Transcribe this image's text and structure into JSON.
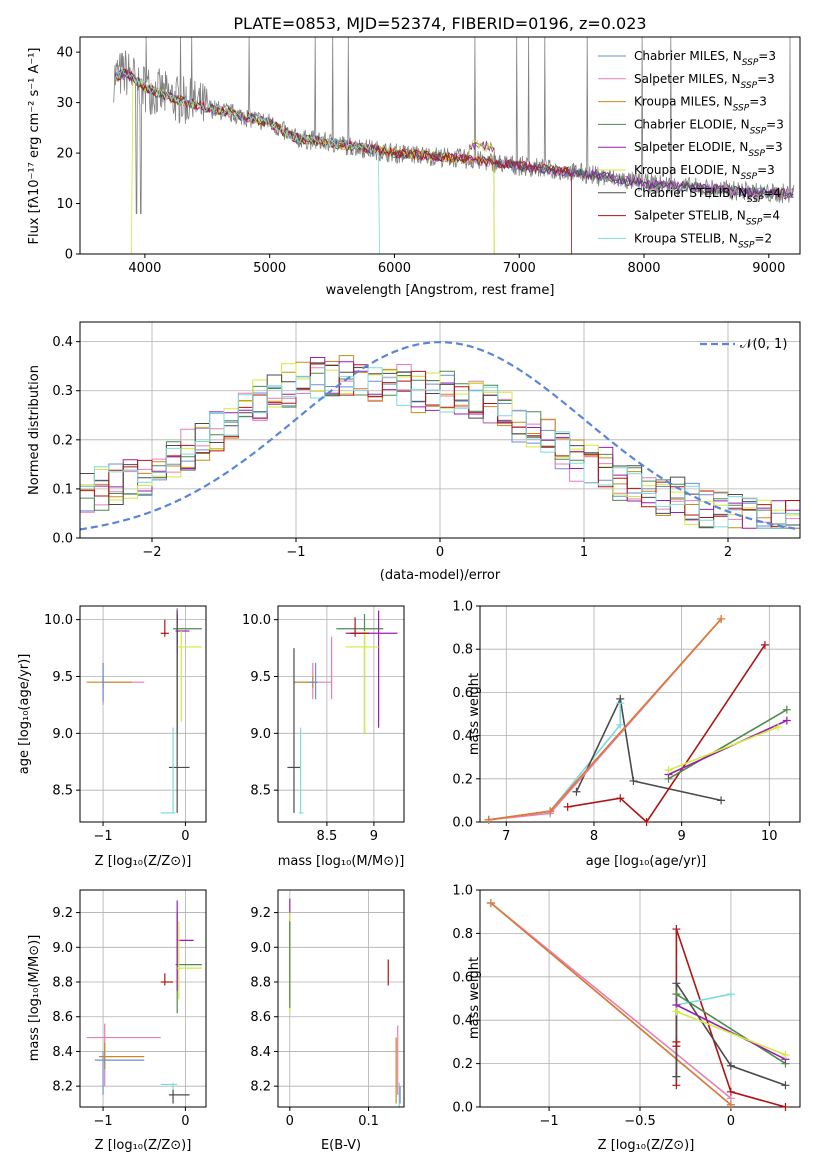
{
  "colors": {
    "Chabrier MILES": "#6a8fd6",
    "Salpeter MILES": "#e67fb5",
    "Kroupa MILES": "#c98a1e",
    "Chabrier ELODIE": "#4f8a4f",
    "Salpeter ELODIE": "#9a1fb0",
    "Kroupa ELODIE": "#d4ea3c",
    "Chabrier STELIB": "#4b4b4b",
    "Salpeter STELIB": "#b01515",
    "Kroupa STELIB": "#7fdadb",
    "data": "#808080",
    "normal": "#5b86d8",
    "orange": "#e07a2e"
  },
  "chart_data": [
    {
      "id": "spectrum",
      "type": "line",
      "title": "PLATE=0853, MJD=52374, FIBERID=0196, z=0.023",
      "xlabel": "wavelength [Angstrom, rest frame]",
      "ylabel": "Flux [fλ10⁻¹⁷ erg cm⁻² s⁻¹ A⁻¹]",
      "xlim": [
        3480,
        9250
      ],
      "ylim": [
        0,
        43
      ],
      "xticks": [
        4000,
        5000,
        6000,
        7000,
        8000,
        9000
      ],
      "yticks": [
        0,
        10,
        20,
        30,
        40
      ],
      "legend": [
        "Chabrier MILES, N_SSP=3",
        "Salpeter MILES, N_SSP=3",
        "Kroupa MILES, N_SSP=3",
        "Chabrier ELODIE, N_SSP=3",
        "Salpeter ELODIE, N_SSP=3",
        "Kroupa ELODIE, N_SSP=3",
        "Chabrier STELIB, N_SSP=4",
        "Salpeter STELIB, N_SSP=4",
        "Kroupa STELIB, N_SSP=2"
      ],
      "legend_position": "top-right",
      "continuum": [
        [
          3750,
          35
        ],
        [
          3850,
          36
        ],
        [
          4000,
          33
        ],
        [
          4200,
          31
        ],
        [
          4500,
          29
        ],
        [
          5000,
          26
        ],
        [
          5200,
          23
        ],
        [
          5500,
          22
        ],
        [
          6000,
          20
        ],
        [
          6500,
          19
        ],
        [
          7000,
          17.5
        ],
        [
          7500,
          16
        ],
        [
          8000,
          14
        ],
        [
          8500,
          13
        ],
        [
          9000,
          12
        ],
        [
          9200,
          12
        ]
      ]
    },
    {
      "id": "residuals",
      "type": "step",
      "xlabel": "(data-model)/error",
      "ylabel": "Normed distribution",
      "xlim": [
        -2.5,
        2.5
      ],
      "ylim": [
        0,
        0.44
      ],
      "xticks": [
        -2,
        -1,
        0,
        1,
        2
      ],
      "yticks": [
        0,
        0.1,
        0.2,
        0.3,
        0.4
      ],
      "legend": [
        "𝒩(0, 1)"
      ],
      "legend_position": "top-right",
      "bins": 50,
      "base_profile": [
        0.09,
        0.1,
        0.11,
        0.12,
        0.13,
        0.14,
        0.16,
        0.18,
        0.2,
        0.22,
        0.24,
        0.26,
        0.28,
        0.3,
        0.31,
        0.32,
        0.33,
        0.33,
        0.33,
        0.32,
        0.32,
        0.31,
        0.31,
        0.3,
        0.3,
        0.3,
        0.29,
        0.28,
        0.27,
        0.26,
        0.24,
        0.22,
        0.2,
        0.18,
        0.16,
        0.15,
        0.14,
        0.12,
        0.11,
        0.1,
        0.09,
        0.08,
        0.07,
        0.06,
        0.06,
        0.05,
        0.05,
        0.04,
        0.04,
        0.04
      ]
    },
    {
      "id": "age_vs_Z",
      "type": "errorbar",
      "xlabel": "Z [log₁₀(Z/Z⊙)]",
      "ylabel": "age  [log₁₀(age/yr)]",
      "xlim": [
        -1.28,
        0.25
      ],
      "ylim": [
        8.22,
        10.12
      ],
      "xticks": [
        -1,
        0
      ],
      "yticks": [
        8.5,
        9.0,
        9.5,
        10.0
      ],
      "points": [
        {
          "x": -1.0,
          "xlo": -1.0,
          "xhi": -0.5,
          "y": 9.45,
          "ylo": 9.25,
          "yhi": 9.62,
          "c": "Salpeter MILES"
        },
        {
          "x": -1.0,
          "xlo": -1.2,
          "xhi": -0.65,
          "y": 9.45,
          "ylo": 9.4,
          "yhi": 9.5,
          "c": "Kroupa MILES"
        },
        {
          "x": -1.0,
          "xlo": -1.02,
          "xhi": -0.98,
          "y": 9.45,
          "ylo": 9.28,
          "yhi": 9.62,
          "c": "Chabrier MILES"
        },
        {
          "x": -0.25,
          "xlo": -0.3,
          "xhi": -0.2,
          "y": 9.88,
          "ylo": 9.85,
          "yhi": 10.0,
          "c": "Salpeter STELIB"
        },
        {
          "x": -0.1,
          "xlo": -0.15,
          "xhi": 0.2,
          "y": 9.92,
          "ylo": 9.0,
          "yhi": 10.1,
          "c": "Chabrier ELODIE"
        },
        {
          "x": -0.1,
          "xlo": -0.12,
          "xhi": 0.05,
          "y": 9.9,
          "ylo": 9.7,
          "yhi": 10.08,
          "c": "Salpeter ELODIE"
        },
        {
          "x": -0.05,
          "xlo": -0.1,
          "xhi": 0.2,
          "y": 9.76,
          "ylo": 9.1,
          "yhi": 9.9,
          "c": "Kroupa ELODIE"
        },
        {
          "x": -0.1,
          "xlo": -0.2,
          "xhi": 0.05,
          "y": 8.7,
          "ylo": 8.3,
          "yhi": 10.05,
          "c": "Chabrier STELIB"
        },
        {
          "x": -0.15,
          "xlo": -0.3,
          "xhi": -0.12,
          "y": 8.3,
          "ylo": 8.3,
          "yhi": 9.05,
          "c": "Kroupa STELIB"
        }
      ]
    },
    {
      "id": "age_vs_mass",
      "type": "errorbar",
      "xlabel": "mass [log₁₀(M/M⊙)]",
      "ylabel": "",
      "xlim": [
        7.98,
        9.32
      ],
      "ylim": [
        8.22,
        10.12
      ],
      "xticks": [
        8.5,
        9.0
      ],
      "yticks": [
        8.5,
        9.0,
        9.5,
        10.0
      ],
      "points": [
        {
          "x": 8.35,
          "xlo": 8.15,
          "xhi": 8.55,
          "y": 9.45,
          "ylo": 9.3,
          "yhi": 9.62,
          "c": "Salpeter MILES"
        },
        {
          "x": 8.35,
          "xlo": 8.15,
          "xhi": 8.4,
          "y": 9.45,
          "ylo": 9.4,
          "yhi": 9.5,
          "c": "Kroupa MILES"
        },
        {
          "x": 8.38,
          "xlo": 8.3,
          "xhi": 8.4,
          "y": 9.45,
          "ylo": 9.3,
          "yhi": 9.62,
          "c": "Chabrier MILES"
        },
        {
          "x": 8.55,
          "xlo": 8.55,
          "xhi": 8.55,
          "y": 9.45,
          "ylo": 9.3,
          "yhi": 9.85,
          "c": "Salpeter MILES"
        },
        {
          "x": 8.9,
          "xlo": 8.6,
          "xhi": 9.1,
          "y": 9.92,
          "ylo": 9.0,
          "yhi": 10.05,
          "c": "Chabrier ELODIE"
        },
        {
          "x": 9.05,
          "xlo": 8.7,
          "xhi": 9.25,
          "y": 9.88,
          "ylo": 9.05,
          "yhi": 10.08,
          "c": "Salpeter ELODIE"
        },
        {
          "x": 8.9,
          "xlo": 8.7,
          "xhi": 9.05,
          "y": 9.76,
          "ylo": 9.0,
          "yhi": 9.9,
          "c": "Kroupa ELODIE"
        },
        {
          "x": 8.8,
          "xlo": 8.75,
          "xhi": 8.95,
          "y": 9.88,
          "ylo": 9.85,
          "yhi": 10.02,
          "c": "Salpeter STELIB"
        },
        {
          "x": 8.15,
          "xlo": 8.08,
          "xhi": 8.22,
          "y": 8.7,
          "ylo": 8.3,
          "yhi": 9.75,
          "c": "Chabrier STELIB"
        },
        {
          "x": 8.22,
          "xlo": 8.2,
          "xhi": 8.25,
          "y": 8.3,
          "ylo": 8.3,
          "yhi": 9.05,
          "c": "Kroupa STELIB"
        }
      ]
    },
    {
      "id": "weight_vs_age",
      "type": "line",
      "xlabel": "age  [log₁₀(age/yr)]",
      "ylabel": "mass weight",
      "xlim": [
        6.7,
        10.35
      ],
      "ylim": [
        0,
        1.0
      ],
      "xticks": [
        7,
        8,
        9,
        10
      ],
      "yticks": [
        0.0,
        0.2,
        0.4,
        0.6,
        0.8,
        1.0
      ],
      "series": [
        {
          "c": "Kroupa STELIB",
          "x": [
            6.8,
            7.5,
            8.3,
            8.3
          ],
          "y": [
            0.01,
            0.05,
            0.45,
            0.55
          ]
        },
        {
          "c": "Chabrier STELIB",
          "x": [
            7.8,
            8.3,
            8.45,
            9.45
          ],
          "y": [
            0.14,
            0.57,
            0.19,
            0.1
          ]
        },
        {
          "c": "Salpeter STELIB",
          "x": [
            7.7,
            8.3,
            8.6,
            9.95
          ],
          "y": [
            0.07,
            0.11,
            0.0,
            0.82
          ]
        },
        {
          "c": "Chabrier ELODIE",
          "x": [
            8.85,
            10.2
          ],
          "y": [
            0.2,
            0.52
          ]
        },
        {
          "c": "Salpeter ELODIE",
          "x": [
            8.85,
            10.2
          ],
          "y": [
            0.22,
            0.47
          ]
        },
        {
          "c": "Kroupa ELODIE",
          "x": [
            8.85,
            10.1
          ],
          "y": [
            0.24,
            0.44
          ]
        },
        {
          "c": "Chabrier MILES",
          "x": [
            6.8,
            7.5,
            9.45
          ],
          "y": [
            0.01,
            0.05,
            0.94
          ]
        },
        {
          "c": "Salpeter MILES",
          "x": [
            6.8,
            7.5,
            9.45
          ],
          "y": [
            0.01,
            0.04,
            0.94
          ]
        },
        {
          "c": "orange",
          "x": [
            6.8,
            7.5,
            9.45
          ],
          "y": [
            0.01,
            0.05,
            0.94
          ]
        }
      ]
    },
    {
      "id": "mass_vs_Z",
      "type": "errorbar",
      "xlabel": "Z [log₁₀(Z/Z⊙)]",
      "ylabel": "mass [log₁₀(M/M⊙)]",
      "xlim": [
        -1.28,
        0.25
      ],
      "ylim": [
        8.08,
        9.33
      ],
      "xticks": [
        -1,
        0
      ],
      "yticks": [
        8.2,
        8.4,
        8.6,
        8.8,
        9.0,
        9.2
      ],
      "points": [
        {
          "x": -0.98,
          "xlo": -1.2,
          "xhi": -0.3,
          "y": 8.48,
          "ylo": 8.2,
          "yhi": 8.56,
          "c": "Salpeter MILES"
        },
        {
          "x": -0.98,
          "xlo": -1.05,
          "xhi": -0.5,
          "y": 8.37,
          "ylo": 8.3,
          "yhi": 8.45,
          "c": "Kroupa MILES"
        },
        {
          "x": -1.0,
          "xlo": -1.1,
          "xhi": -0.5,
          "y": 8.35,
          "ylo": 8.15,
          "yhi": 8.4,
          "c": "Chabrier MILES"
        },
        {
          "x": -0.25,
          "xlo": -0.3,
          "xhi": -0.15,
          "y": 8.8,
          "ylo": 8.78,
          "yhi": 8.85,
          "c": "Salpeter STELIB"
        },
        {
          "x": -0.1,
          "xlo": -0.12,
          "xhi": 0.2,
          "y": 8.9,
          "ylo": 8.62,
          "yhi": 9.2,
          "c": "Chabrier ELODIE"
        },
        {
          "x": -0.1,
          "xlo": -0.1,
          "xhi": 0.1,
          "y": 9.04,
          "ylo": 8.75,
          "yhi": 9.27,
          "c": "Salpeter ELODIE"
        },
        {
          "x": -0.08,
          "xlo": -0.1,
          "xhi": 0.2,
          "y": 8.88,
          "ylo": 8.7,
          "yhi": 9.15,
          "c": "Kroupa ELODIE"
        },
        {
          "x": -0.15,
          "xlo": -0.2,
          "xhi": 0.05,
          "y": 8.15,
          "ylo": 8.1,
          "yhi": 8.18,
          "c": "Chabrier STELIB"
        },
        {
          "x": -0.15,
          "xlo": -0.3,
          "xhi": -0.1,
          "y": 8.21,
          "ylo": 8.18,
          "yhi": 8.22,
          "c": "Kroupa STELIB"
        }
      ]
    },
    {
      "id": "mass_vs_ebv",
      "type": "errorbar",
      "xlabel": "E(B-V)",
      "ylabel": "",
      "xlim": [
        -0.015,
        0.145
      ],
      "ylim": [
        8.08,
        9.33
      ],
      "xticks": [
        0.0,
        0.1
      ],
      "yticks": [
        8.2,
        8.4,
        8.6,
        8.8,
        9.0,
        9.2
      ],
      "points": [
        {
          "x": 0.0,
          "xlo": 0.0,
          "xhi": 0.0,
          "y": 9.05,
          "ylo": 8.7,
          "yhi": 9.28,
          "c": "Salpeter ELODIE"
        },
        {
          "x": 0.0,
          "xlo": 0.0,
          "xhi": 0.0,
          "y": 8.9,
          "ylo": 8.62,
          "yhi": 9.2,
          "c": "Kroupa ELODIE"
        },
        {
          "x": 0.0,
          "xlo": 0.0,
          "xhi": 0.0,
          "y": 8.88,
          "ylo": 8.65,
          "yhi": 9.15,
          "c": "Chabrier ELODIE"
        },
        {
          "x": 0.125,
          "xlo": 0.125,
          "xhi": 0.125,
          "y": 8.85,
          "ylo": 8.78,
          "yhi": 8.93,
          "c": "Salpeter STELIB"
        },
        {
          "x": 0.135,
          "xlo": 0.135,
          "xhi": 0.135,
          "y": 8.3,
          "ylo": 8.1,
          "yhi": 8.48,
          "c": "Kroupa MILES"
        },
        {
          "x": 0.137,
          "xlo": 0.137,
          "xhi": 0.137,
          "y": 8.35,
          "ylo": 8.15,
          "yhi": 8.55,
          "c": "Salpeter MILES"
        },
        {
          "x": 0.139,
          "xlo": 0.139,
          "xhi": 0.139,
          "y": 8.15,
          "ylo": 8.08,
          "yhi": 8.22,
          "c": "Kroupa STELIB"
        },
        {
          "x": 0.14,
          "xlo": 0.14,
          "xhi": 0.14,
          "y": 8.15,
          "ylo": 8.1,
          "yhi": 8.2,
          "c": "Chabrier MILES"
        }
      ]
    },
    {
      "id": "weight_vs_Z",
      "type": "line",
      "xlabel": "Z [log₁₀(Z/Z⊙)]",
      "ylabel": "mass weight",
      "xlim": [
        -1.38,
        0.38
      ],
      "ylim": [
        0,
        1.0
      ],
      "xticks": [
        -1.0,
        -0.5,
        0.0
      ],
      "yticks": [
        0.0,
        0.2,
        0.4,
        0.6,
        0.8,
        1.0
      ],
      "series": [
        {
          "c": "Chabrier MILES",
          "x": [
            -1.32,
            0.0
          ],
          "y": [
            0.94,
            0.01
          ]
        },
        {
          "c": "Salpeter MILES",
          "x": [
            -1.32,
            0.0
          ],
          "y": [
            0.94,
            0.04
          ]
        },
        {
          "c": "orange",
          "x": [
            -1.32,
            0.0
          ],
          "y": [
            0.94,
            0.01
          ]
        },
        {
          "c": "Salpeter STELIB",
          "x": [
            -0.3,
            -0.3,
            0.0,
            0.3
          ],
          "y": [
            0.1,
            0.82,
            0.07,
            0.0
          ]
        },
        {
          "c": "Chabrier STELIB",
          "x": [
            -0.3,
            -0.3,
            0.0,
            0.3
          ],
          "y": [
            0.14,
            0.57,
            0.19,
            0.1
          ]
        },
        {
          "c": "Kroupa STELIB",
          "x": [
            -0.3,
            0.0
          ],
          "y": [
            0.47,
            0.52
          ]
        },
        {
          "c": "Chabrier ELODIE",
          "x": [
            -0.3,
            0.3
          ],
          "y": [
            0.52,
            0.2
          ]
        },
        {
          "c": "Salpeter ELODIE",
          "x": [
            -0.3,
            0.3
          ],
          "y": [
            0.47,
            0.22
          ]
        },
        {
          "c": "Kroupa ELODIE",
          "x": [
            -0.3,
            0.3
          ],
          "y": [
            0.44,
            0.24
          ]
        },
        {
          "c": "Salpeter STELIB",
          "x": [
            -0.3,
            -0.3
          ],
          "y": [
            0.28,
            0.3
          ]
        }
      ]
    }
  ]
}
